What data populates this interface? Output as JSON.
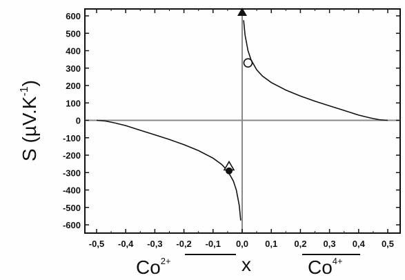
{
  "chart_data": {
    "type": "line",
    "title": "",
    "ylabel": "S (µV.K",
    "ylabel_sup": "-1",
    "ylabel_close": ")",
    "xlabel": "x",
    "xlim": [
      -0.55,
      0.55
    ],
    "ylim": [
      -650,
      650
    ],
    "xticks": [
      -0.5,
      -0.4,
      -0.3,
      -0.2,
      -0.1,
      0.0,
      0.1,
      0.2,
      0.3,
      0.4,
      0.5
    ],
    "xtick_labels": [
      "-0,5",
      "-0,4",
      "-0,3",
      "-0,2",
      "-0,1",
      "0,0",
      "0,1",
      "0,2",
      "0,3",
      "0,4",
      "0,5"
    ],
    "yticks": [
      600,
      500,
      400,
      300,
      200,
      100,
      0,
      -100,
      -200,
      -300,
      -400,
      -500,
      -600
    ],
    "ytick_labels": [
      "600",
      "500",
      "400",
      "300",
      "200",
      "100",
      "0",
      "-100",
      "-200",
      "-300",
      "-400",
      "-500",
      "-600"
    ],
    "grid": false,
    "reference_lines": {
      "horizontal_y": 0,
      "vertical_x": 0
    },
    "ion_labels": {
      "left": {
        "base": "Co",
        "sup": "2+"
      },
      "right": {
        "base": "Co",
        "sup": "4+"
      }
    },
    "series": [
      {
        "x": [
          -0.5,
          -0.47,
          -0.44,
          -0.4,
          -0.35,
          -0.3,
          -0.25,
          -0.2,
          -0.15,
          -0.1,
          -0.07,
          -0.05,
          -0.03,
          -0.02,
          -0.01,
          -0.005
        ],
        "y": [
          0,
          -4,
          -14,
          -30,
          -57,
          -83,
          -110,
          -140,
          -174,
          -217,
          -254,
          -290,
          -349,
          -401,
          -489,
          -575
        ]
      },
      {
        "x": [
          0.005,
          0.01,
          0.02,
          0.03,
          0.05,
          0.07,
          0.1,
          0.15,
          0.2,
          0.25,
          0.3,
          0.35,
          0.4,
          0.44,
          0.47,
          0.5
        ],
        "y": [
          575,
          489,
          401,
          349,
          290,
          254,
          217,
          174,
          140,
          110,
          83,
          57,
          30,
          14,
          4,
          0
        ]
      }
    ],
    "markers": [
      {
        "shape": "open-circle",
        "x": 0.02,
        "y": 330
      },
      {
        "shape": "open-triangle",
        "x": -0.045,
        "y": -265
      },
      {
        "shape": "filled-circle",
        "x": -0.045,
        "y": -290
      },
      {
        "shape": "filled-triangle",
        "x": 0.0,
        "y": 620
      }
    ],
    "colors": {
      "curve": "#111111",
      "reference_line": "#888888",
      "frame": "#111111"
    }
  }
}
